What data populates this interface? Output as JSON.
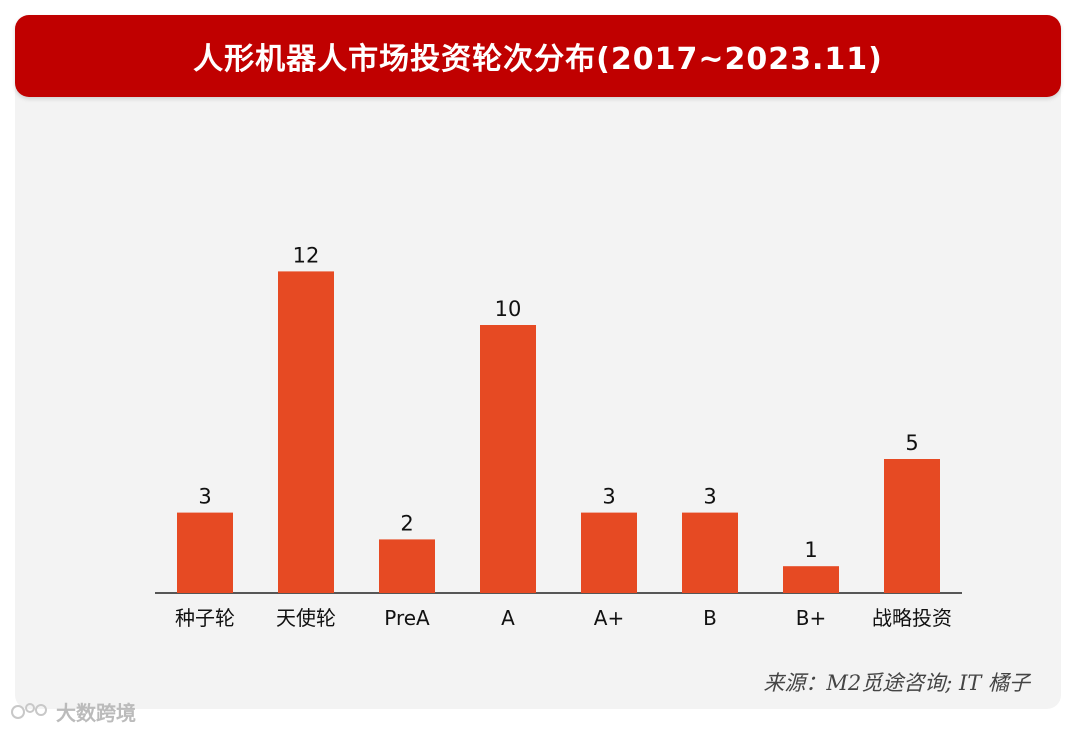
{
  "title": "人形机器人市场投资轮次分布(2017~2023.11)",
  "source": "来源：M2觅途咨询; IT 橘子",
  "watermark": "大数跨境",
  "colors": {
    "bar": "#e64a23",
    "title_bg": "#c00000",
    "axis": "#222222"
  },
  "chart_data": {
    "type": "bar",
    "title": "人形机器人市场投资轮次分布(2017~2023.11)",
    "categories": [
      "种子轮",
      "天使轮",
      "PreA",
      "A",
      "A+",
      "B",
      "B+",
      "战略投资"
    ],
    "values": [
      3,
      12,
      2,
      10,
      3,
      3,
      1,
      5
    ],
    "xlabel": "",
    "ylabel": "",
    "ylim": [
      0,
      12
    ],
    "grid": false,
    "legend": "none",
    "data_labels": true
  }
}
